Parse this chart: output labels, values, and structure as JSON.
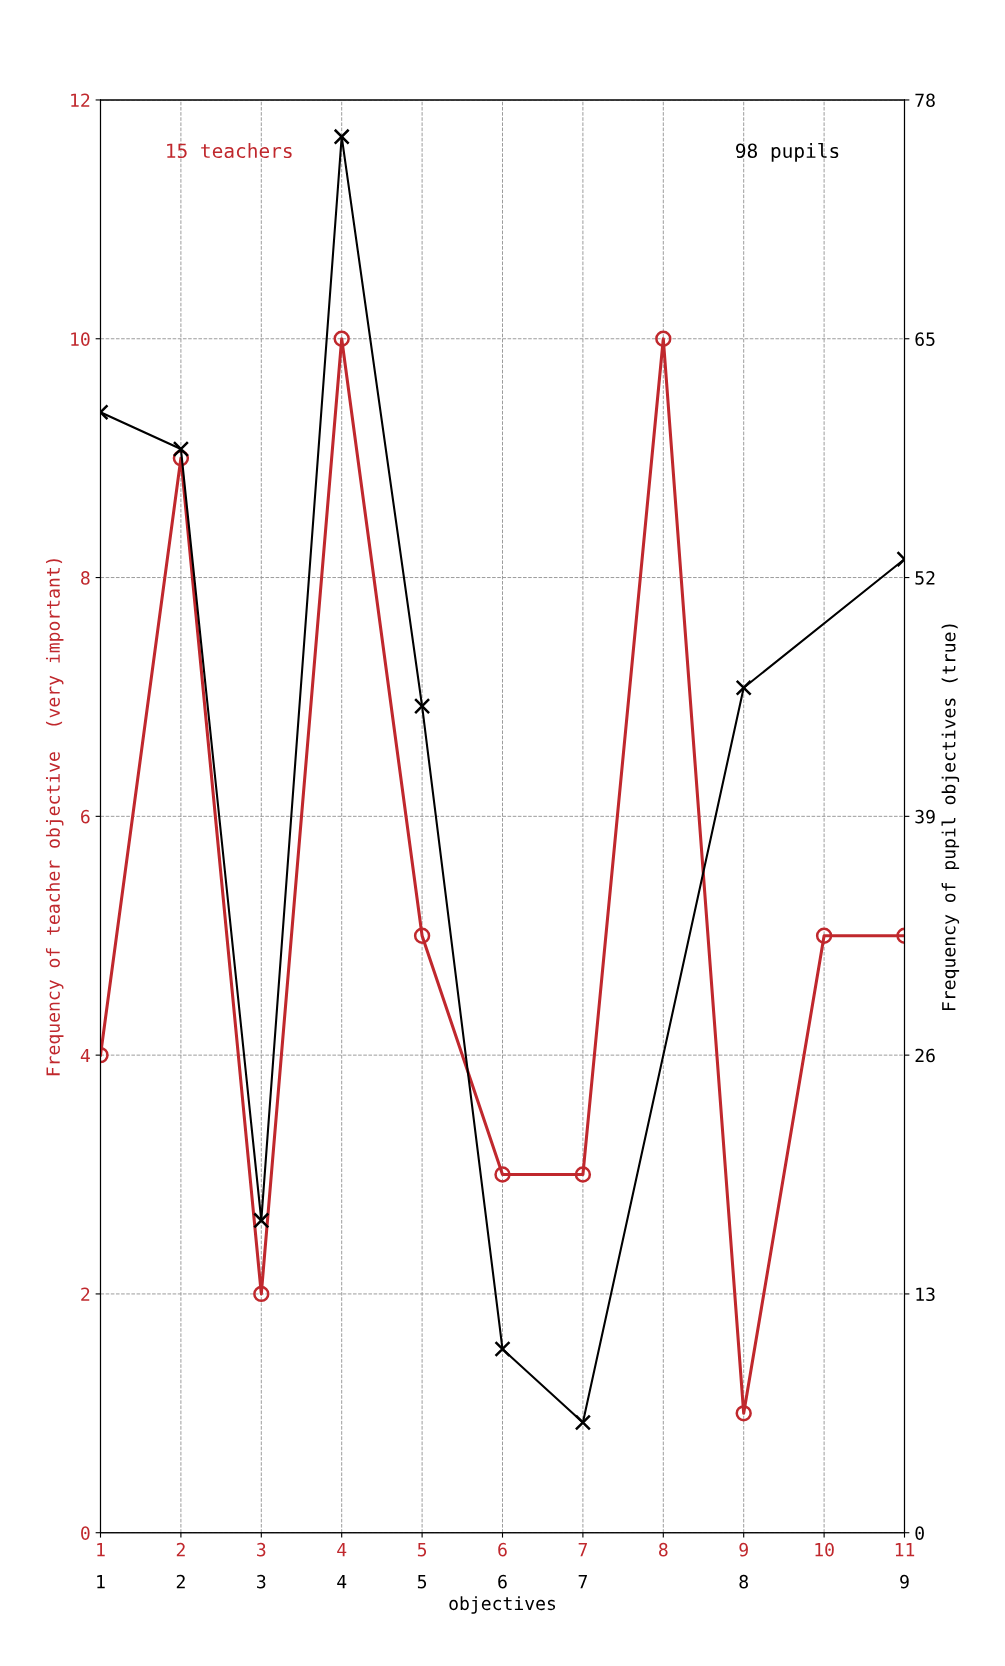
{
  "chart_data": {
    "type": "line",
    "xlabel": "objectives",
    "ylabel": "Frequency of teacher objective  (very important)",
    "y2label": "Frequency of pupil objectives (true)",
    "xlim": [
      1,
      11
    ],
    "xticks": [
      1,
      2,
      3,
      4,
      5,
      6,
      7,
      8,
      9,
      10,
      11
    ],
    "ylim": [
      0,
      12
    ],
    "yticks": [
      0,
      2,
      4,
      6,
      8,
      10,
      12
    ],
    "y2lim": [
      0,
      78
    ],
    "y2ticks": [
      0,
      13,
      26,
      39,
      52,
      65,
      78
    ],
    "grid": true,
    "series": [
      {
        "color": "#c0282d",
        "marker": "circle",
        "x": [
          1,
          2,
          3,
          4,
          5,
          6,
          7,
          8,
          9,
          10,
          11
        ],
        "values": [
          4,
          9,
          2,
          10,
          5,
          3,
          3,
          10,
          1,
          5,
          5
        ]
      },
      {
        "color": "#000000",
        "marker": "cross",
        "axis": "y2",
        "x": [
          1,
          2,
          3,
          4,
          5,
          6,
          7,
          9,
          11
        ],
        "values": [
          61,
          59,
          17,
          76,
          45,
          10,
          6,
          46,
          53
        ]
      }
    ],
    "annotations": [
      "15 teachers",
      "98 pupils",
      "1",
      "2",
      "3",
      "4",
      "5",
      "6",
      "7",
      "8",
      "9"
    ]
  }
}
